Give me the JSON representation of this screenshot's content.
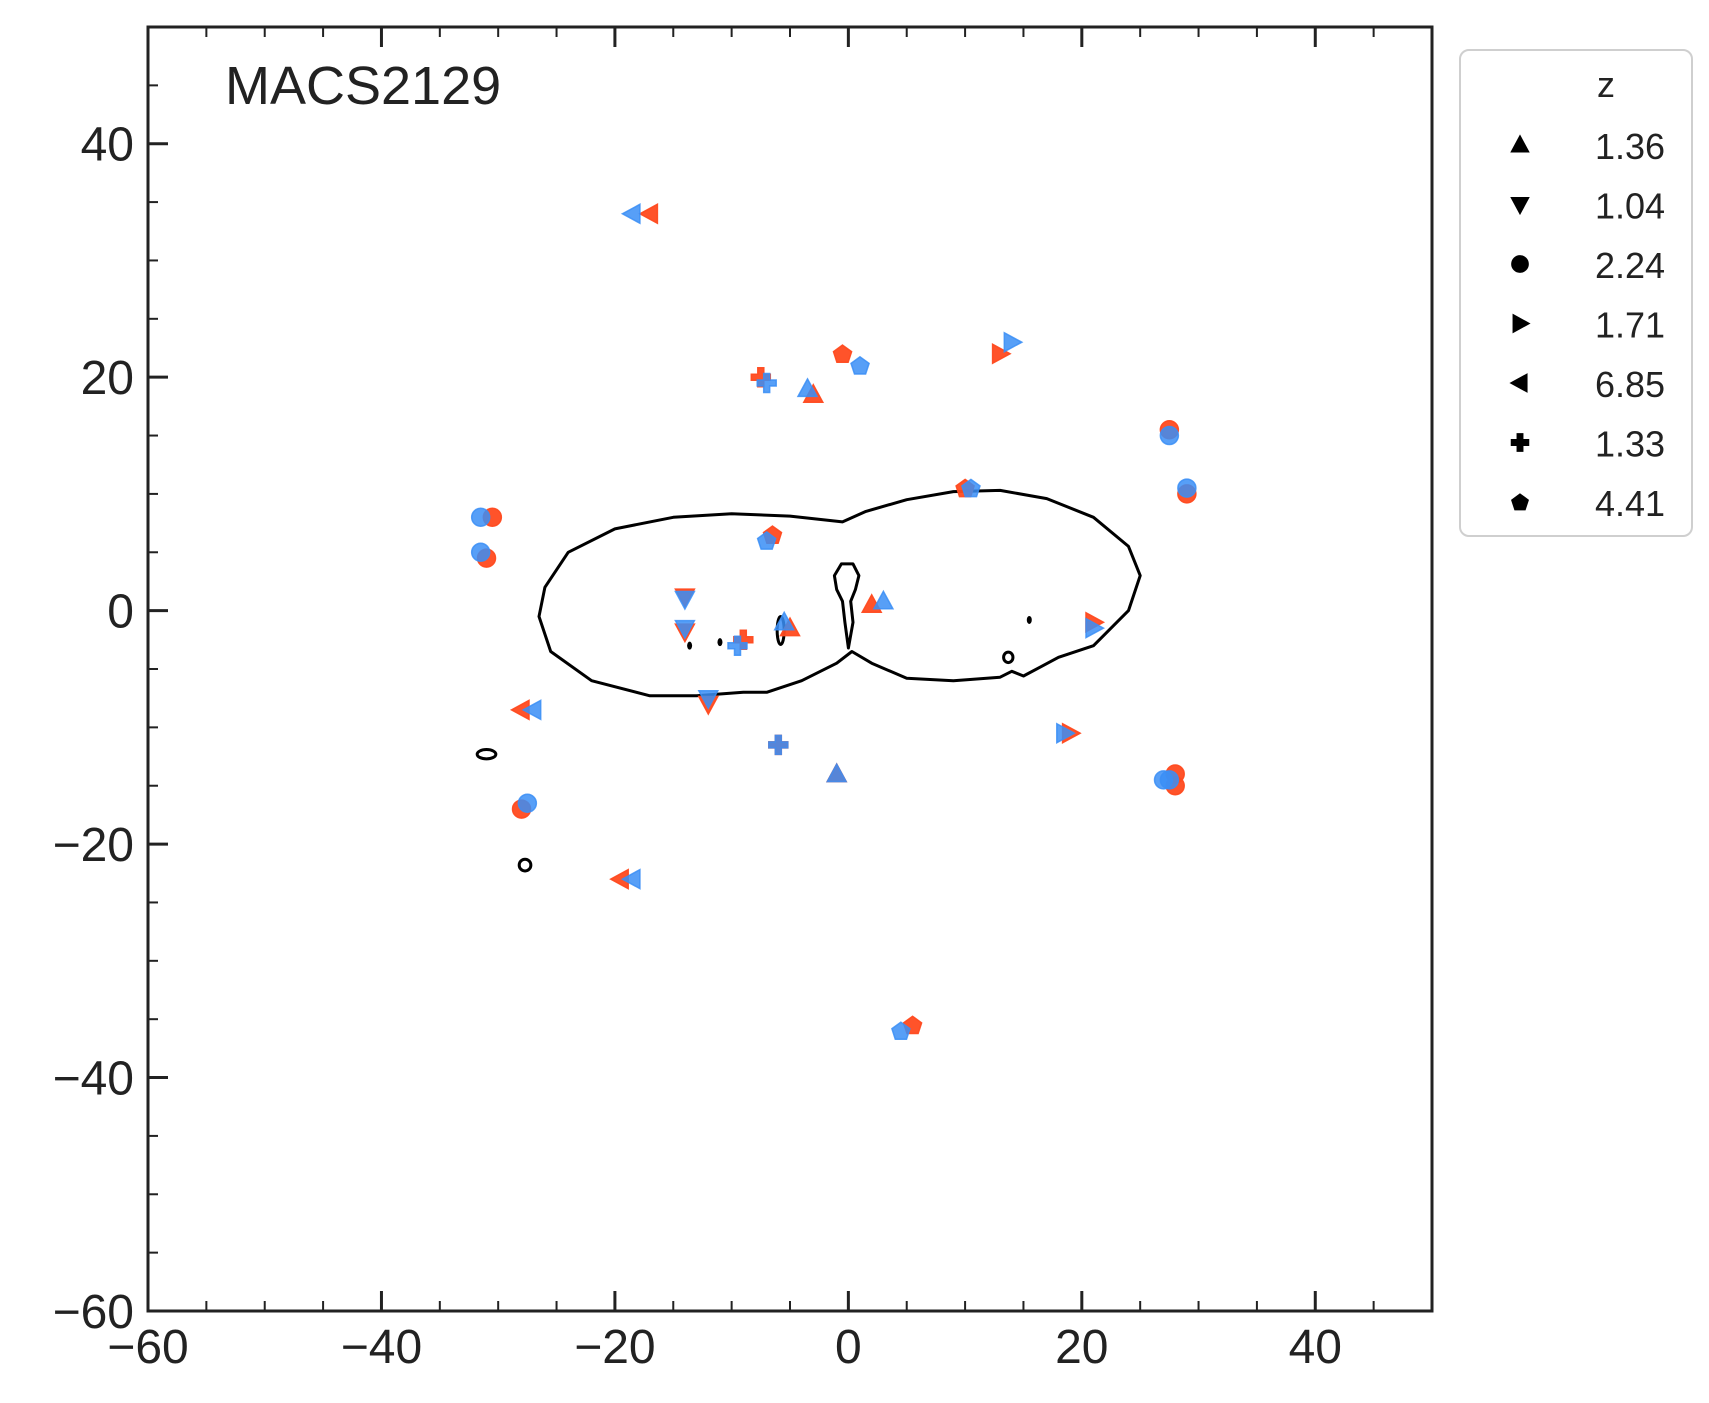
{
  "chart_data": {
    "type": "scatter",
    "title": "MACS2129",
    "xlabel": "",
    "ylabel": "",
    "xlim": [
      -60,
      50
    ],
    "ylim": [
      -60,
      50
    ],
    "xticks": [
      -60,
      -40,
      -20,
      0,
      20,
      40
    ],
    "yticks": [
      -60,
      -40,
      -20,
      0,
      20,
      40
    ],
    "xtick_labels": [
      "−60",
      "−40",
      "−20",
      "0",
      "20",
      "40"
    ],
    "ytick_labels": [
      "−60",
      "−40",
      "−20",
      "0",
      "20",
      "40"
    ],
    "grid": false,
    "legend": {
      "title": "z",
      "placement": "outside upper right",
      "entries": [
        {
          "label": "1.36",
          "marker": "triangle-up"
        },
        {
          "label": "1.04",
          "marker": "triangle-down"
        },
        {
          "label": "2.24",
          "marker": "circle"
        },
        {
          "label": "1.71",
          "marker": "triangle-right"
        },
        {
          "label": "6.85",
          "marker": "triangle-left"
        },
        {
          "label": "1.33",
          "marker": "plus"
        },
        {
          "label": "4.41",
          "marker": "pentagon"
        }
      ]
    },
    "colors": {
      "observed": "#ff4a1f",
      "model": "#3a8ef6",
      "curve": "#000000",
      "frame": "#222222"
    },
    "series": [
      {
        "z": "1.36",
        "marker": "triangle-up",
        "observed": [
          [
            -3,
            18.5
          ],
          [
            2,
            0.5
          ],
          [
            -5,
            -1.5
          ],
          [
            -1,
            -14
          ]
        ],
        "model": [
          [
            -3.5,
            19
          ],
          [
            3,
            0.8
          ],
          [
            -5.5,
            -1
          ],
          [
            -1,
            -14
          ]
        ]
      },
      {
        "z": "1.04",
        "marker": "triangle-down",
        "observed": [
          [
            -14,
            1.2
          ],
          [
            -14,
            -1.8
          ],
          [
            -12,
            -8
          ]
        ],
        "model": [
          [
            -14,
            1
          ],
          [
            -14,
            -1.5
          ],
          [
            -12,
            -7.5
          ]
        ]
      },
      {
        "z": "2.24",
        "marker": "circle",
        "observed": [
          [
            -30.5,
            8
          ],
          [
            -31,
            4.5
          ],
          [
            -28,
            -17
          ],
          [
            27.5,
            15.5
          ],
          [
            28,
            -15
          ],
          [
            29,
            10
          ],
          [
            28,
            -14
          ]
        ],
        "model": [
          [
            -31.5,
            8
          ],
          [
            -31.5,
            5
          ],
          [
            -27.5,
            -16.5
          ],
          [
            27.5,
            15
          ],
          [
            27.5,
            -14.5
          ],
          [
            29,
            10.5
          ],
          [
            27,
            -14.5
          ]
        ]
      },
      {
        "z": "1.71",
        "marker": "triangle-right",
        "observed": [
          [
            13,
            22
          ],
          [
            21,
            -1
          ],
          [
            19,
            -10.5
          ]
        ],
        "model": [
          [
            14,
            23
          ],
          [
            21,
            -1.5
          ],
          [
            18.5,
            -10.5
          ]
        ]
      },
      {
        "z": "6.85",
        "marker": "triangle-left",
        "observed": [
          [
            -17,
            34
          ],
          [
            -28,
            -8.5
          ],
          [
            -19.5,
            -23
          ]
        ],
        "model": [
          [
            -18.5,
            34
          ],
          [
            -27,
            -8.5
          ],
          [
            -18.5,
            -23
          ]
        ]
      },
      {
        "z": "1.33",
        "marker": "plus",
        "observed": [
          [
            -7.5,
            20
          ],
          [
            -9,
            -2.5
          ],
          [
            -6,
            -11.5
          ]
        ],
        "model": [
          [
            -7,
            19.5
          ],
          [
            -9.5,
            -3
          ],
          [
            -6,
            -11.5
          ]
        ]
      },
      {
        "z": "4.41",
        "marker": "pentagon",
        "observed": [
          [
            -0.5,
            22
          ],
          [
            10,
            10.5
          ],
          [
            -6.5,
            6.5
          ],
          [
            5.5,
            -35.5
          ]
        ],
        "model": [
          [
            1,
            21
          ],
          [
            10.5,
            10.5
          ],
          [
            -7,
            6
          ],
          [
            4.5,
            -36
          ]
        ]
      }
    ]
  }
}
